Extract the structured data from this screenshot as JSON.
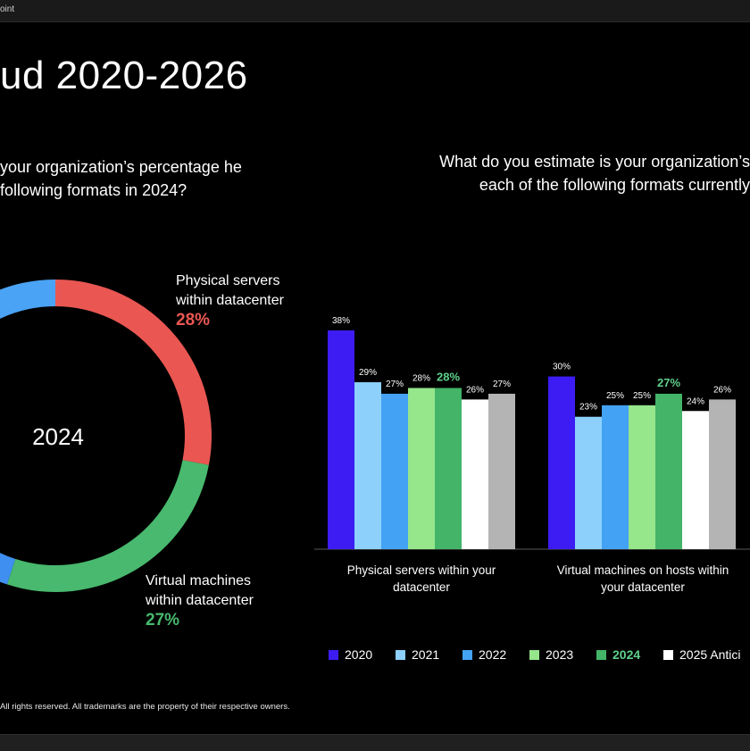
{
  "window": {
    "title": "oint"
  },
  "slide": {
    "title": "ud 2020-2026",
    "left_question": "your organization’s percentage he following formats in 2024?",
    "right_question_line1": "What do you estimate is your organization’s",
    "right_question_line2": "each of the following formats currently",
    "footer": "All rights reserved. All trademarks are the property of their respective owners."
  },
  "chart_data": [
    {
      "type": "pie",
      "center_label": "2024",
      "slices": [
        {
          "label": "Physical servers within datacenter",
          "label_line1": "Physical servers",
          "label_line2": "within datacenter",
          "pct_text": "28%",
          "value": 28,
          "color": "#ea5752"
        },
        {
          "label": "Virtual machines within datacenter",
          "label_line1": "Virtual machines",
          "label_line2": "within datacenter",
          "pct_text": "27%",
          "value": 27,
          "color": "#48b96e"
        }
      ],
      "unlabeled_slice_colors": [
        "#3f8ff0",
        "#4aa3f5"
      ]
    },
    {
      "type": "bar",
      "categories": [
        {
          "line1": "Physical servers within your",
          "line2": "datacenter"
        },
        {
          "line1": "Virtual machines on hosts within",
          "line2": "your datacenter"
        }
      ],
      "series": [
        {
          "name": "2020",
          "color": "#3c1cf2",
          "values": [
            38,
            30
          ]
        },
        {
          "name": "2021",
          "color": "#8cd0fb",
          "values": [
            29,
            23
          ]
        },
        {
          "name": "2022",
          "color": "#44a2f4",
          "values": [
            27,
            25
          ]
        },
        {
          "name": "2023",
          "color": "#96e68c",
          "values": [
            28,
            25
          ]
        },
        {
          "name": "2024",
          "color": "#43b468",
          "values": [
            28,
            27
          ],
          "highlight": true
        },
        {
          "name": "2025 Antici",
          "color": "#ffffff",
          "values": [
            26,
            24
          ]
        },
        {
          "name": "",
          "color": "#b4b4b4",
          "values": [
            27,
            26
          ]
        }
      ],
      "value_suffix": "%",
      "highlight_label_color": "#5fd08a"
    }
  ]
}
